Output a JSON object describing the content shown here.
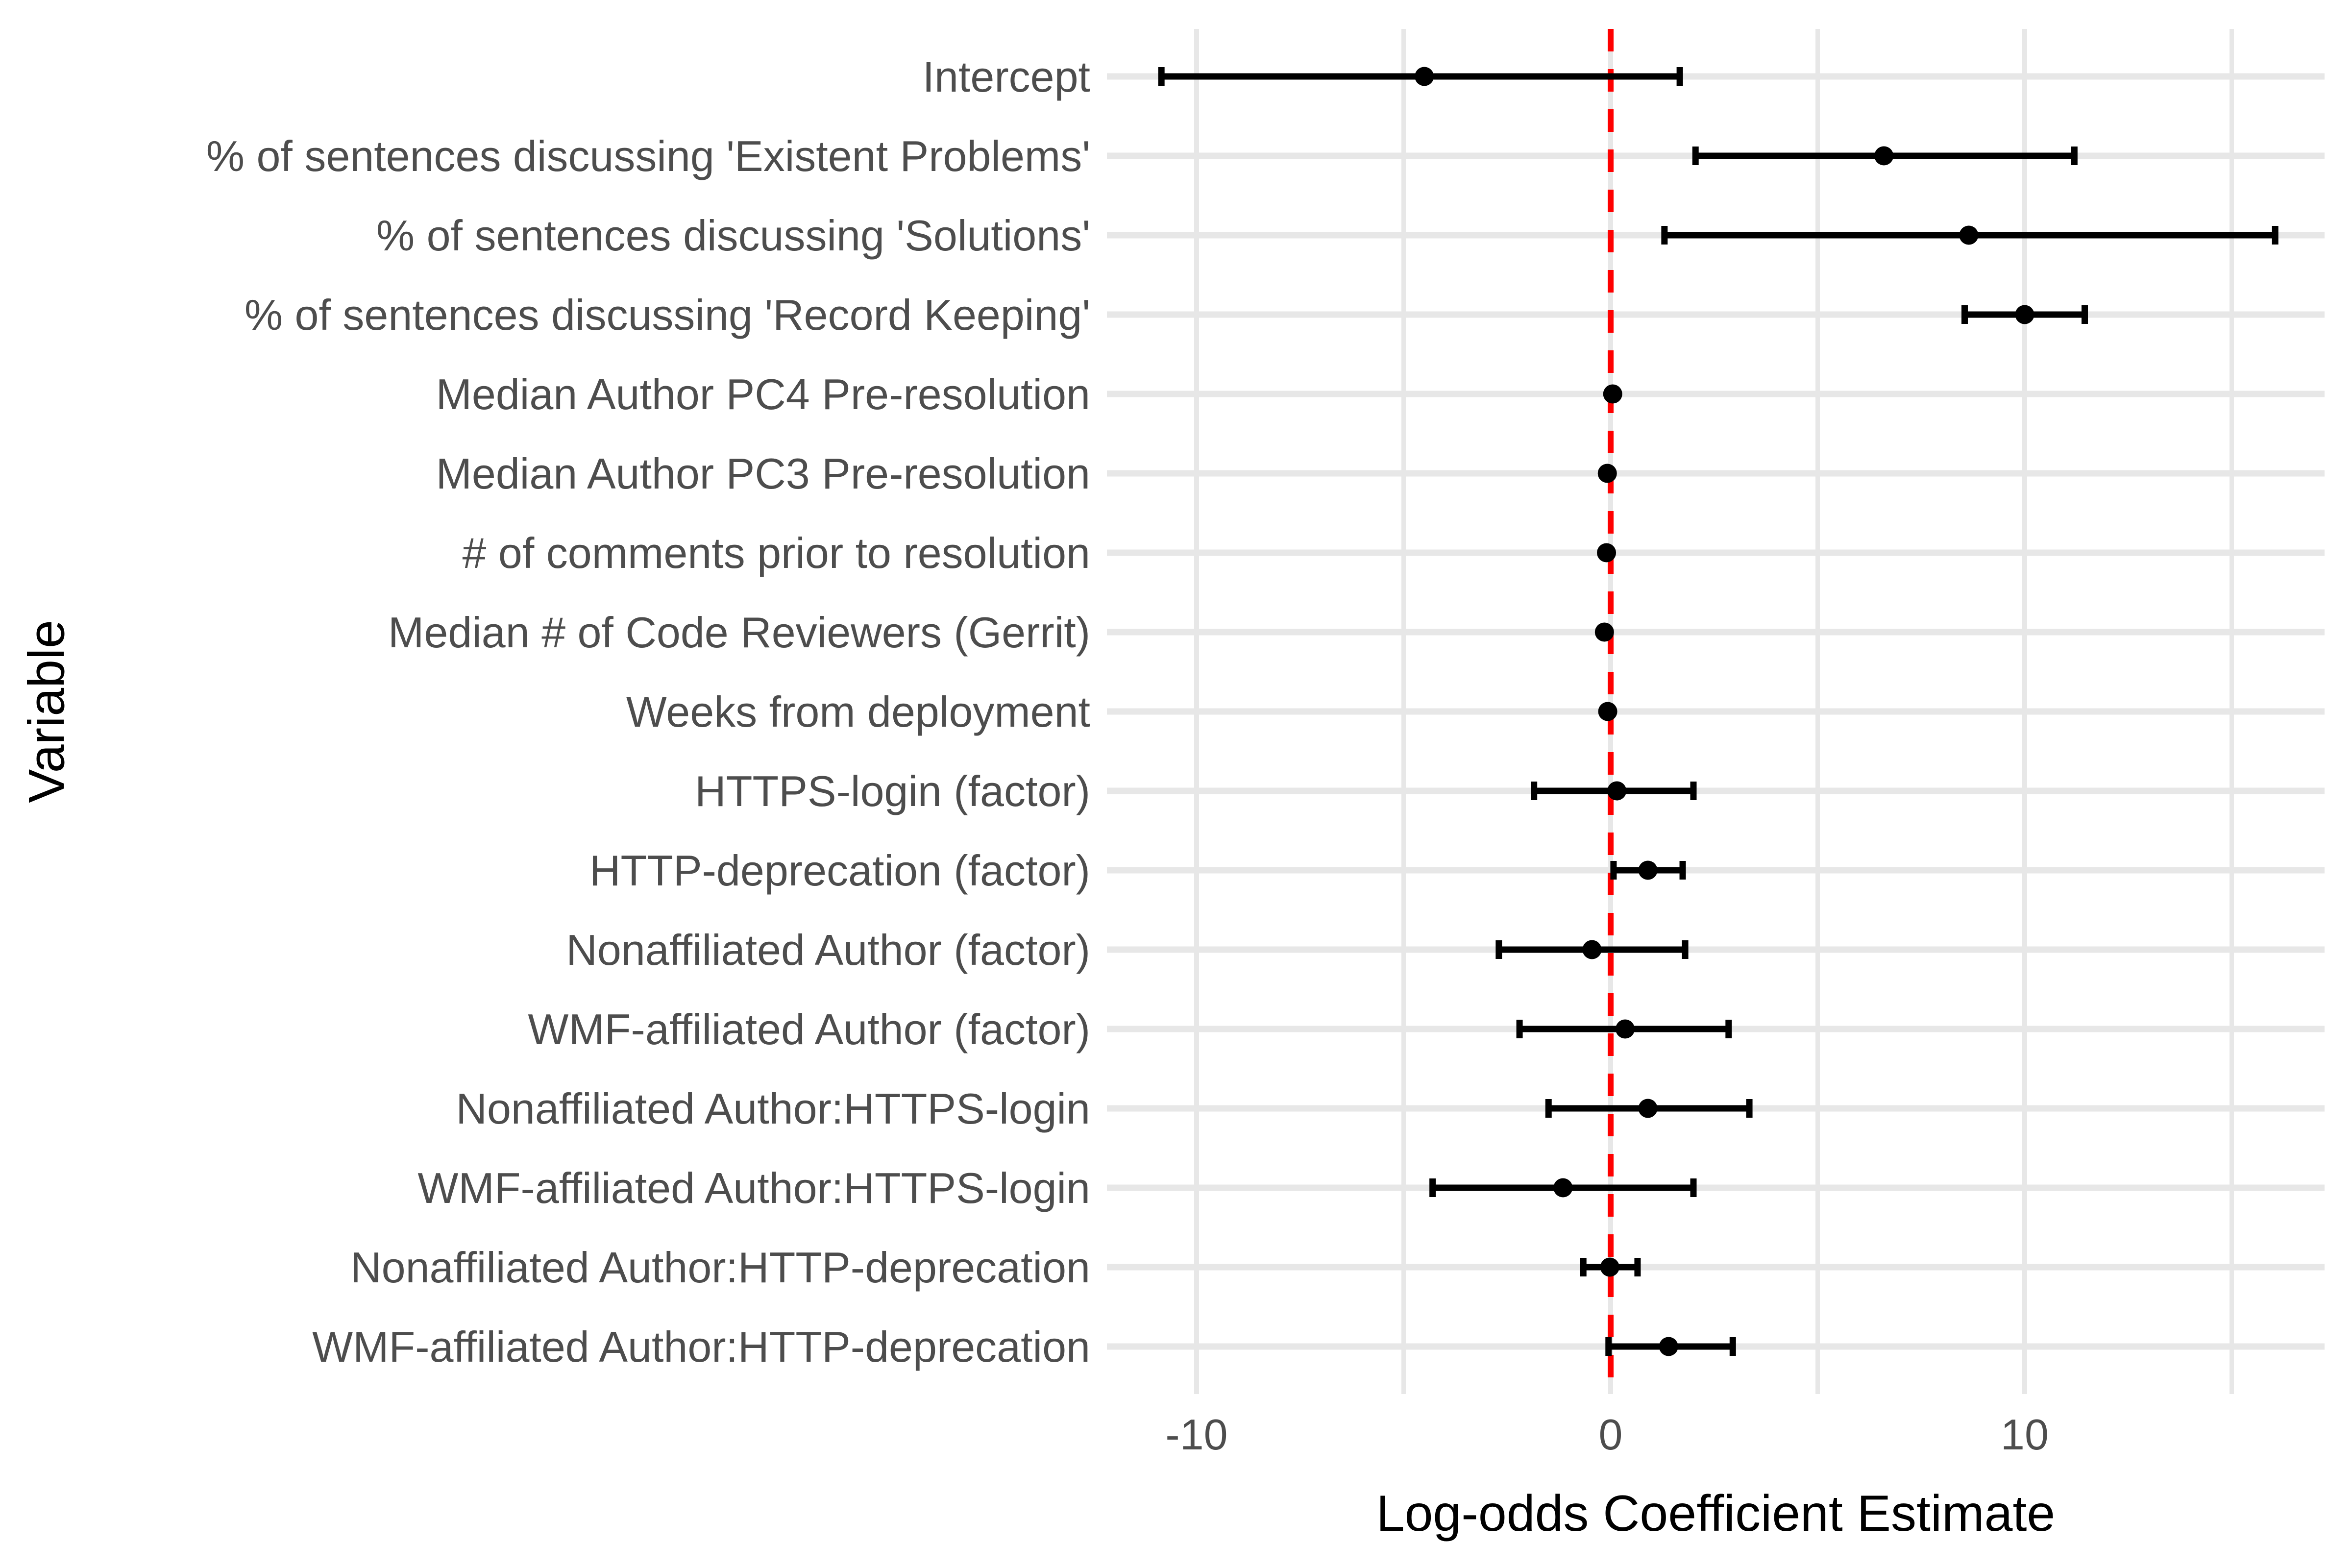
{
  "chart_data": {
    "type": "scatter",
    "subtype": "forest-coefficient-plot",
    "title": "",
    "xlabel": "Log-odds Coefficient Estimate",
    "ylabel": "Variable",
    "xlim": [
      -12.2,
      17.25
    ],
    "x_major_ticks": [
      -10,
      0,
      10
    ],
    "x_major_tick_labels": [
      "-10",
      "0",
      "10"
    ],
    "x_minor_gridlines": [
      -5,
      5,
      15
    ],
    "grid": true,
    "legend": "none",
    "reference_line": {
      "x": 0,
      "style": "dashed",
      "color": "#FF0000"
    },
    "rows": [
      {
        "label": "Intercept",
        "estimate": -4.5,
        "ci_low": -10.85,
        "ci_high": 1.67
      },
      {
        "label": "% of sentences discussing 'Existent Problems'",
        "estimate": 6.6,
        "ci_low": 2.05,
        "ci_high": 11.2
      },
      {
        "label": "% of sentences discussing 'Solutions'",
        "estimate": 8.65,
        "ci_low": 1.3,
        "ci_high": 16.05
      },
      {
        "label": "% of sentences discussing 'Record Keeping'",
        "estimate": 10.0,
        "ci_low": 8.55,
        "ci_high": 11.45
      },
      {
        "label": "Median Author PC4 Pre-resolution",
        "estimate": 0.05,
        "ci_low": -0.15,
        "ci_high": 0.25
      },
      {
        "label": "Median Author PC3 Pre-resolution",
        "estimate": -0.08,
        "ci_low": -0.28,
        "ci_high": 0.14
      },
      {
        "label": "# of comments prior to resolution",
        "estimate": -0.1,
        "ci_low": -0.3,
        "ci_high": 0.1
      },
      {
        "label": "Median # of Code Reviewers (Gerrit)",
        "estimate": -0.15,
        "ci_low": -0.36,
        "ci_high": 0.08
      },
      {
        "label": "Weeks from deployment",
        "estimate": -0.07,
        "ci_low": -0.27,
        "ci_high": 0.13
      },
      {
        "label": "HTTPS-login (factor)",
        "estimate": 0.15,
        "ci_low": -1.85,
        "ci_high": 2.0
      },
      {
        "label": "HTTP-deprecation (factor)",
        "estimate": 0.9,
        "ci_low": 0.07,
        "ci_high": 1.74
      },
      {
        "label": "Nonaffiliated Author (factor)",
        "estimate": -0.45,
        "ci_low": -2.7,
        "ci_high": 1.8
      },
      {
        "label": "WMF-affiliated Author (factor)",
        "estimate": 0.35,
        "ci_low": -2.2,
        "ci_high": 2.85
      },
      {
        "label": "Nonaffiliated Author:HTTPS-login",
        "estimate": 0.9,
        "ci_low": -1.5,
        "ci_high": 3.35
      },
      {
        "label": "WMF-affiliated Author:HTTPS-login",
        "estimate": -1.15,
        "ci_low": -4.3,
        "ci_high": 2.0
      },
      {
        "label": "Nonaffiliated Author:HTTP-deprecation",
        "estimate": -0.02,
        "ci_low": -0.66,
        "ci_high": 0.65
      },
      {
        "label": "WMF-affiliated Author:HTTP-deprecation",
        "estimate": 1.4,
        "ci_low": -0.05,
        "ci_high": 2.95
      }
    ],
    "colors": {
      "point": "#000000",
      "errorbar": "#000000",
      "gridline": "#E7E7E7",
      "axis_text": "#4D4D4D",
      "axis_title": "#000000",
      "reference_line": "#FF0000",
      "background": "#FFFFFF"
    }
  }
}
